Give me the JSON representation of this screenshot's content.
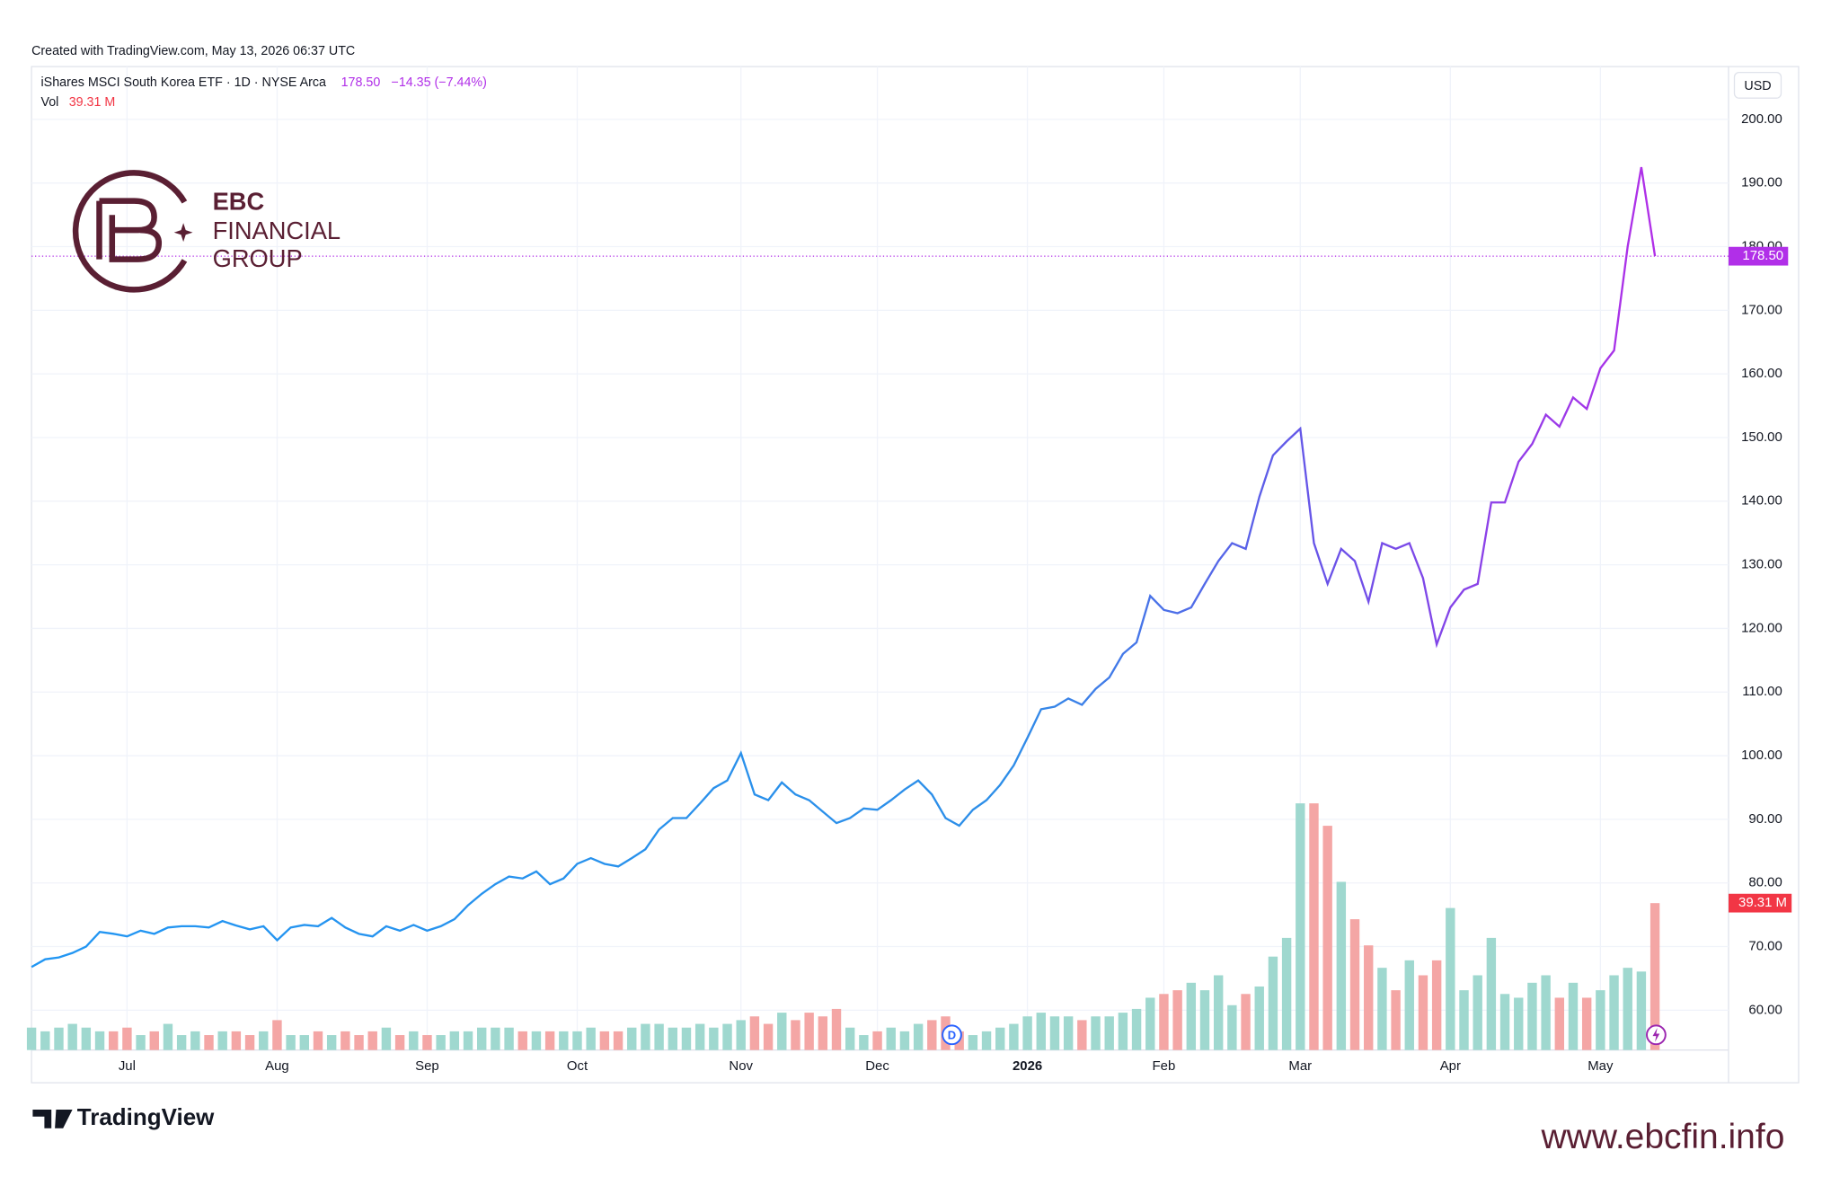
{
  "header": {
    "created": "Created with TradingView.com, May 13, 2026 06:37 UTC",
    "instrument": "iShares MSCI South Korea ETF · 1D · NYSE Arca",
    "close_text": "178.50",
    "change": "−14.35 (−7.44%)",
    "vol_label": "Vol",
    "vol_text": "39.31 M"
  },
  "logo": {
    "line1": "EBC",
    "line2": "FINANCIAL",
    "line3": "GROUP"
  },
  "footer": {
    "brand": "TradingView",
    "url": "www.ebcfin.info"
  },
  "chart_data": {
    "type": "line",
    "currency": "USD",
    "dividend_marker": "D",
    "categories": [
      null,
      null,
      null,
      null,
      null,
      null,
      null,
      "Jul",
      null,
      null,
      null,
      null,
      null,
      null,
      null,
      null,
      null,
      null,
      "Aug",
      null,
      null,
      null,
      null,
      null,
      null,
      null,
      null,
      null,
      null,
      "Sep",
      null,
      null,
      null,
      null,
      null,
      null,
      null,
      null,
      null,
      null,
      "Oct",
      null,
      null,
      null,
      null,
      null,
      null,
      null,
      null,
      null,
      null,
      null,
      "Nov",
      null,
      null,
      null,
      null,
      null,
      null,
      null,
      null,
      null,
      "Dec",
      null,
      null,
      null,
      null,
      null,
      null,
      null,
      null,
      null,
      null,
      "2026",
      null,
      null,
      null,
      null,
      null,
      null,
      null,
      null,
      null,
      "Feb",
      null,
      null,
      null,
      null,
      null,
      null,
      null,
      null,
      null,
      "Mar",
      null,
      null,
      null,
      null,
      null,
      null,
      null,
      null,
      null,
      null,
      "Apr",
      null,
      null,
      null,
      null,
      null,
      null,
      null,
      null,
      null,
      null,
      "May",
      null,
      null,
      null,
      null
    ],
    "values": [
      66.8,
      68,
      68.3,
      69,
      70,
      72.3,
      72,
      71.6,
      72.5,
      72,
      73,
      73.2,
      73.2,
      73,
      74,
      73.3,
      72.7,
      73.2,
      71,
      73,
      73.4,
      73.2,
      74.5,
      73,
      72,
      71.6,
      73.2,
      72.5,
      73.4,
      72.5,
      73.2,
      74.3,
      76.5,
      78.3,
      79.8,
      81,
      80.7,
      81.8,
      79.8,
      80.7,
      83,
      83.9,
      83,
      82.6,
      83.9,
      85.3,
      88.4,
      90.2,
      90.2,
      92.5,
      94.9,
      96.1,
      100.4,
      93.9,
      93,
      95.8,
      93.9,
      93,
      91.2,
      89.4,
      90.2,
      91.7,
      91.5,
      93,
      94.7,
      96.1,
      93.9,
      90.2,
      89,
      91.5,
      93,
      95.4,
      98.5,
      102.8,
      107.3,
      107.7,
      109,
      108,
      110.5,
      112.3,
      116,
      117.8,
      125.1,
      122.9,
      122.4,
      123.3,
      127,
      130.6,
      133.4,
      132.5,
      140.7,
      147.2,
      149.4,
      151.4,
      133.4,
      127,
      132.5,
      130.6,
      124.2,
      133.4,
      132.5,
      133.4,
      127.9,
      117.5,
      123.3,
      126.1,
      127,
      139.8,
      139.8,
      146.2,
      149,
      153.6,
      151.7,
      156.3,
      154.5,
      160.9,
      163.7,
      180,
      192.5,
      178.5
    ],
    "last_close": {
      "value": 178.5,
      "label": "178.50"
    },
    "volume": {
      "name": "Vol",
      "values": [
        6,
        5,
        6,
        7,
        6,
        5,
        5,
        6,
        4,
        5,
        7,
        4,
        5,
        4,
        5,
        5,
        4,
        5,
        8,
        4,
        4,
        5,
        4,
        5,
        4,
        5,
        6,
        4,
        5,
        4,
        4,
        5,
        5,
        6,
        6,
        6,
        5,
        5,
        5,
        5,
        5,
        6,
        5,
        5,
        6,
        7,
        7,
        6,
        6,
        7,
        6,
        7,
        8,
        9,
        7,
        10,
        8,
        10,
        9,
        11,
        6,
        4,
        5,
        6,
        5,
        7,
        8,
        9,
        5,
        4,
        5,
        6,
        7,
        9,
        10,
        9,
        9,
        8,
        9,
        9,
        10,
        11,
        14,
        15,
        16,
        18,
        16,
        20,
        12,
        15,
        17,
        25,
        30,
        66,
        66,
        60,
        45,
        35,
        28,
        22,
        16,
        24,
        20,
        24,
        38,
        16,
        20,
        30,
        15,
        14,
        18,
        20,
        14,
        18,
        14,
        16,
        20,
        22,
        21,
        39.31
      ],
      "last": {
        "value": 39.31,
        "label": "39.31 M"
      },
      "up_color": "#9fd8cf",
      "down_color": "#f4a6a5"
    },
    "line_colors": [
      "#2196f3",
      "#2d8ee8",
      "#6a52e8",
      "#b12fe8"
    ],
    "ylim": [
      48.6,
      208.3
    ],
    "yticks": [
      {
        "value": 60,
        "label": "60.00"
      },
      {
        "value": 70,
        "label": "70.00"
      },
      {
        "value": 80,
        "label": "80.00"
      },
      {
        "value": 90,
        "label": "90.00"
      },
      {
        "value": 100,
        "label": "100.00"
      },
      {
        "value": 110,
        "label": "110.00"
      },
      {
        "value": 120,
        "label": "120.00"
      },
      {
        "value": 130,
        "label": "130.00"
      },
      {
        "value": 140,
        "label": "140.00"
      },
      {
        "value": 150,
        "label": "150.00"
      },
      {
        "value": 160,
        "label": "160.00"
      },
      {
        "value": 170,
        "label": "170.00"
      },
      {
        "value": 180,
        "label": "180.00"
      },
      {
        "value": 190,
        "label": "190.00"
      },
      {
        "value": 200,
        "label": "200.00"
      }
    ],
    "grid": true
  }
}
